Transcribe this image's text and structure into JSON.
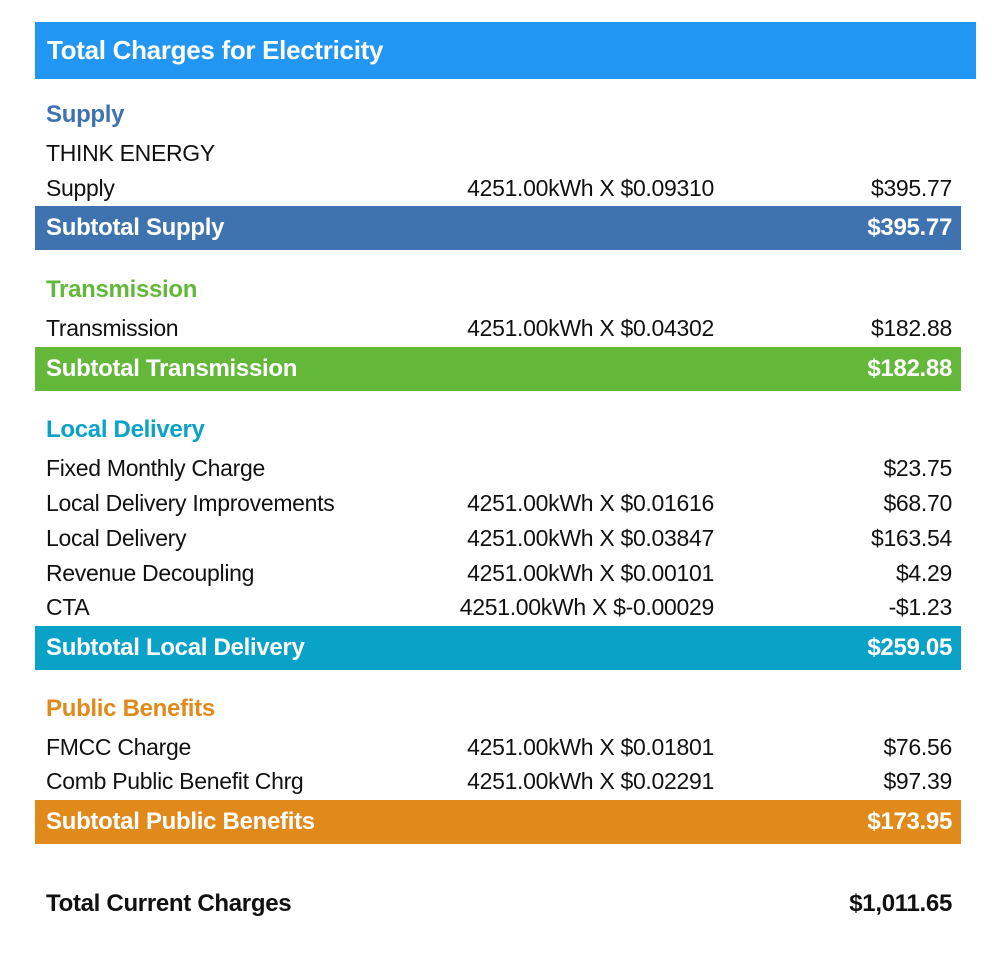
{
  "header": {
    "title": "Total Charges for Electricity"
  },
  "colors": {
    "header": "#2196f3",
    "supply": "#3f73b0",
    "transmission": "#63b83a",
    "local_delivery": "#0ba2c8",
    "public_benefits": "#e08a1c"
  },
  "supply": {
    "title": "Supply",
    "provider": "THINK ENERGY",
    "rows": [
      {
        "label": "Supply",
        "calc": "4251.00kWh X $0.09310",
        "amount": "$395.77"
      }
    ],
    "subtotal": {
      "label": "Subtotal Supply",
      "amount": "$395.77"
    }
  },
  "transmission": {
    "title": "Transmission",
    "rows": [
      {
        "label": "Transmission",
        "calc": "4251.00kWh X $0.04302",
        "amount": "$182.88"
      }
    ],
    "subtotal": {
      "label": "Subtotal Transmission",
      "amount": "$182.88"
    }
  },
  "local_delivery": {
    "title": "Local Delivery",
    "rows": [
      {
        "label": "Fixed Monthly Charge",
        "calc": "",
        "amount": "$23.75"
      },
      {
        "label": "Local Delivery Improvements",
        "calc": "4251.00kWh X $0.01616",
        "amount": "$68.70"
      },
      {
        "label": "Local Delivery",
        "calc": "4251.00kWh X $0.03847",
        "amount": "$163.54"
      },
      {
        "label": "Revenue Decoupling",
        "calc": "4251.00kWh X $0.00101",
        "amount": "$4.29"
      },
      {
        "label": "CTA",
        "calc": "4251.00kWh X $-0.00029",
        "amount": "-$1.23"
      }
    ],
    "subtotal": {
      "label": "Subtotal Local Delivery",
      "amount": "$259.05"
    }
  },
  "public_benefits": {
    "title": "Public Benefits",
    "rows": [
      {
        "label": "FMCC Charge",
        "calc": "4251.00kWh X $0.01801",
        "amount": "$76.56"
      },
      {
        "label": "Comb Public Benefit Chrg",
        "calc": "4251.00kWh X $0.02291",
        "amount": "$97.39"
      }
    ],
    "subtotal": {
      "label": "Subtotal Public Benefits",
      "amount": "$173.95"
    }
  },
  "total": {
    "label": "Total Current Charges",
    "amount": "$1,011.65"
  }
}
